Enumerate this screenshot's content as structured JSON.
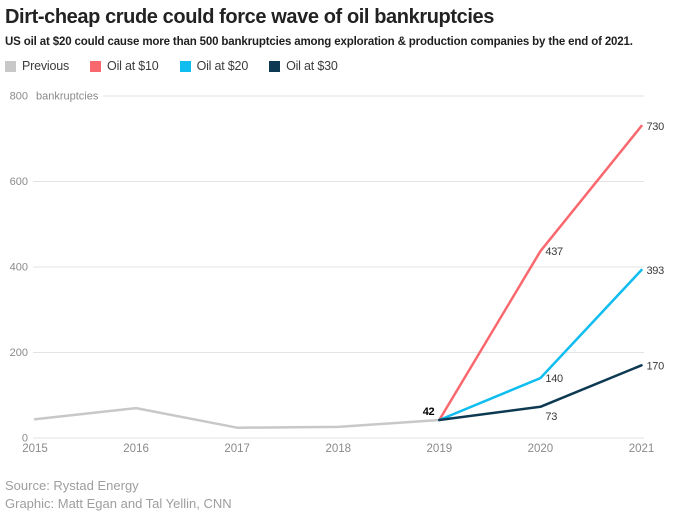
{
  "header": {
    "title": "Dirt-cheap crude could force wave of oil bankruptcies",
    "subtitle": "US oil at $20 could cause more than 500 bankruptcies among exploration & production companies by the end of 2021."
  },
  "legend": {
    "items": [
      {
        "label": "Previous",
        "color": "#c8c8c8"
      },
      {
        "label": "Oil at $10",
        "color": "#f9686e"
      },
      {
        "label": "Oil at $20",
        "color": "#0fbdf0"
      },
      {
        "label": "Oil at $30",
        "color": "#0d3a52"
      }
    ]
  },
  "chart_data": {
    "type": "line",
    "title": "Dirt-cheap crude could force wave of oil bankruptcies",
    "ylabel": "bankruptcies",
    "ylim": [
      0,
      800
    ],
    "yticks": [
      0,
      200,
      400,
      600,
      800
    ],
    "xticks": [
      2015,
      2016,
      2017,
      2018,
      2019,
      2020,
      2021
    ],
    "grid": true,
    "legend_position": "top",
    "series": [
      {
        "name": "Previous",
        "color": "#c8c8c8",
        "points": [
          [
            2015,
            44
          ],
          [
            2016,
            70
          ],
          [
            2017,
            24
          ],
          [
            2018,
            26
          ],
          [
            2019,
            42
          ]
        ]
      },
      {
        "name": "Oil at $10",
        "color": "#f9686e",
        "points": [
          [
            2019,
            42
          ],
          [
            2020,
            437
          ],
          [
            2021,
            730
          ]
        ]
      },
      {
        "name": "Oil at $20",
        "color": "#0fbdf0",
        "points": [
          [
            2019,
            42
          ],
          [
            2020,
            140
          ],
          [
            2021,
            393
          ]
        ]
      },
      {
        "name": "Oil at $30",
        "color": "#0d3a52",
        "points": [
          [
            2019,
            42
          ],
          [
            2020,
            73
          ],
          [
            2021,
            170
          ]
        ]
      }
    ],
    "annotations": [
      {
        "text": "42",
        "x": 2019,
        "y": 42,
        "placement": "left-above",
        "bold": true
      },
      {
        "text": "437",
        "x": 2020,
        "y": 437,
        "placement": "right",
        "bold": false
      },
      {
        "text": "140",
        "x": 2020,
        "y": 140,
        "placement": "right",
        "bold": false
      },
      {
        "text": "73",
        "x": 2020,
        "y": 73,
        "placement": "below-right",
        "bold": false
      },
      {
        "text": "730",
        "x": 2021,
        "y": 730,
        "placement": "right",
        "bold": false
      },
      {
        "text": "393",
        "x": 2021,
        "y": 393,
        "placement": "right",
        "bold": false
      },
      {
        "text": "170",
        "x": 2021,
        "y": 170,
        "placement": "right",
        "bold": false
      }
    ]
  },
  "footer": {
    "source": "Source: Rystad Energy",
    "credit": "Graphic: Matt Egan and Tal Yellin, CNN"
  }
}
